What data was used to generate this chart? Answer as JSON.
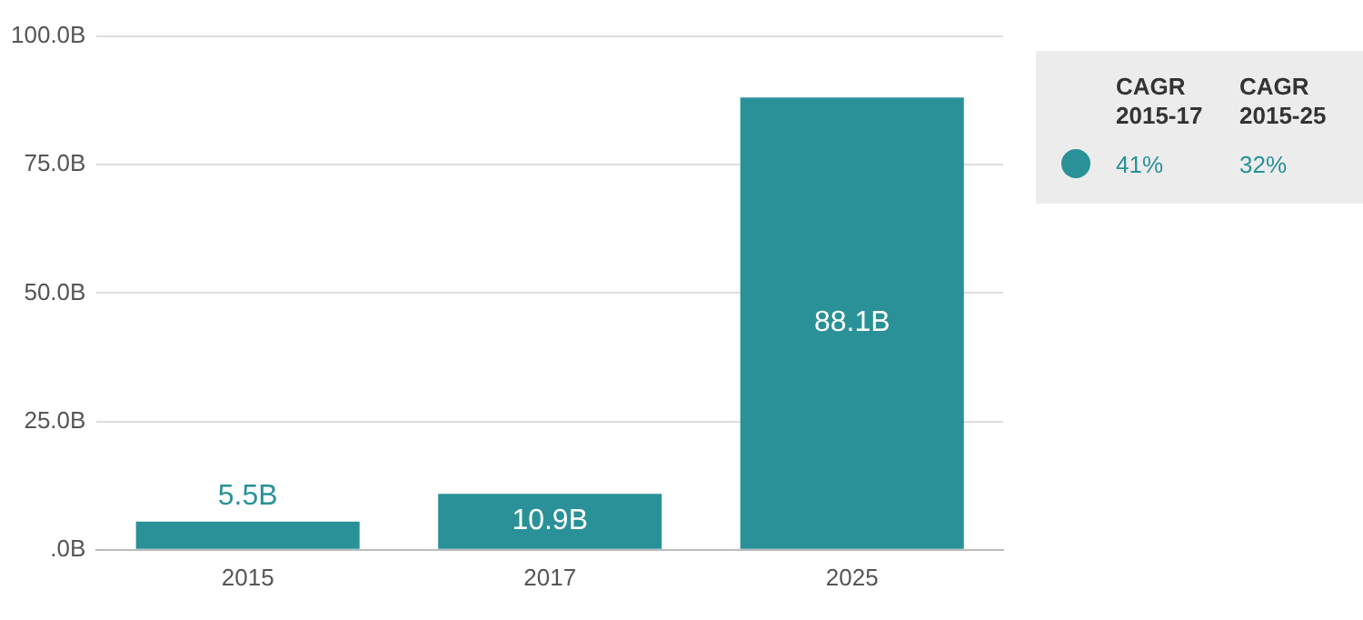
{
  "chart_data": {
    "type": "bar",
    "categories": [
      "2015",
      "2017",
      "2025"
    ],
    "series": [
      {
        "color": "#2a9198",
        "values": [
          5.5,
          10.9,
          88.1
        ],
        "value_labels": [
          "5.5B",
          "10.9B",
          "88.1B"
        ]
      }
    ],
    "ylim": [
      0,
      100
    ],
    "yticks": [
      {
        "value": 0,
        "label": ".0B"
      },
      {
        "value": 25,
        "label": "25.0B"
      },
      {
        "value": 50,
        "label": "50.0B"
      },
      {
        "value": 75,
        "label": "75.0B"
      },
      {
        "value": 100,
        "label": "100.0B"
      }
    ],
    "grid": "y",
    "annotations": [
      "CAGR 2015-17",
      "CAGR 2015-25",
      "41%",
      "32%"
    ]
  }
}
